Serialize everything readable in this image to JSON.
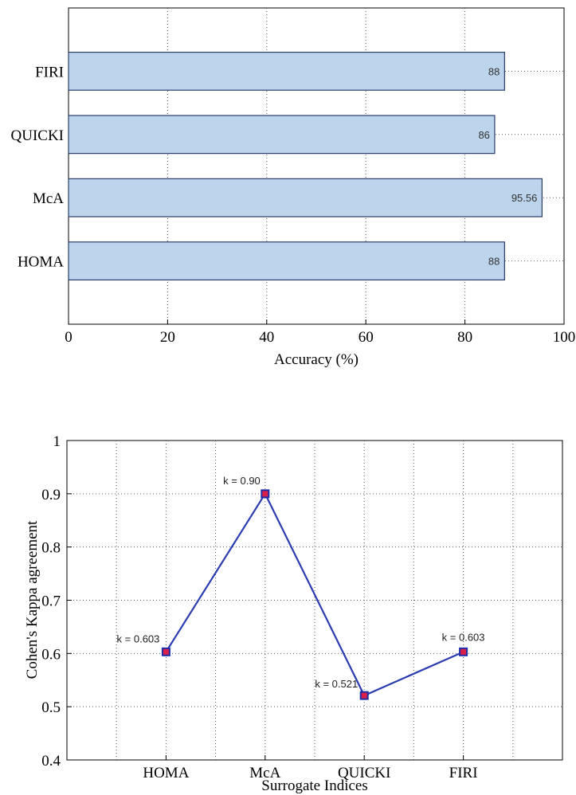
{
  "chart_data": [
    {
      "type": "bar",
      "orientation": "horizontal",
      "categories": [
        "HOMA",
        "McA",
        "QUICKI",
        "FIRI"
      ],
      "values": [
        88,
        95.56,
        86,
        88
      ],
      "data_labels": [
        "88",
        "95.56",
        "86",
        "88"
      ],
      "xlabel": "Accuracy (%)",
      "ylabel": "",
      "xlim": [
        0,
        100
      ],
      "xticks": [
        "0",
        "20",
        "40",
        "60",
        "80",
        "100"
      ],
      "grid": true,
      "bar_color": "#bcd4ec",
      "bar_edge_color": "#2b3d6b"
    },
    {
      "type": "line",
      "categories": [
        "HOMA",
        "McA",
        "QUICKI",
        "FIRI"
      ],
      "values": [
        0.603,
        0.9,
        0.521,
        0.603
      ],
      "data_labels": [
        "k = 0.603",
        "k = 0.90",
        "k = 0.521",
        "k = 0.603"
      ],
      "xlabel": "Surrogate Indices",
      "ylabel": "Cohen's Kappa agreement",
      "ylim": [
        0.4,
        1
      ],
      "yticks": [
        "0.4",
        "0.5",
        "0.6",
        "0.7",
        "0.8",
        "0.9",
        "1"
      ],
      "grid": true,
      "line_color": "#2b3db0",
      "marker_face_color": "#d8204a",
      "marker_edge_color": "#1e2fa8"
    }
  ]
}
